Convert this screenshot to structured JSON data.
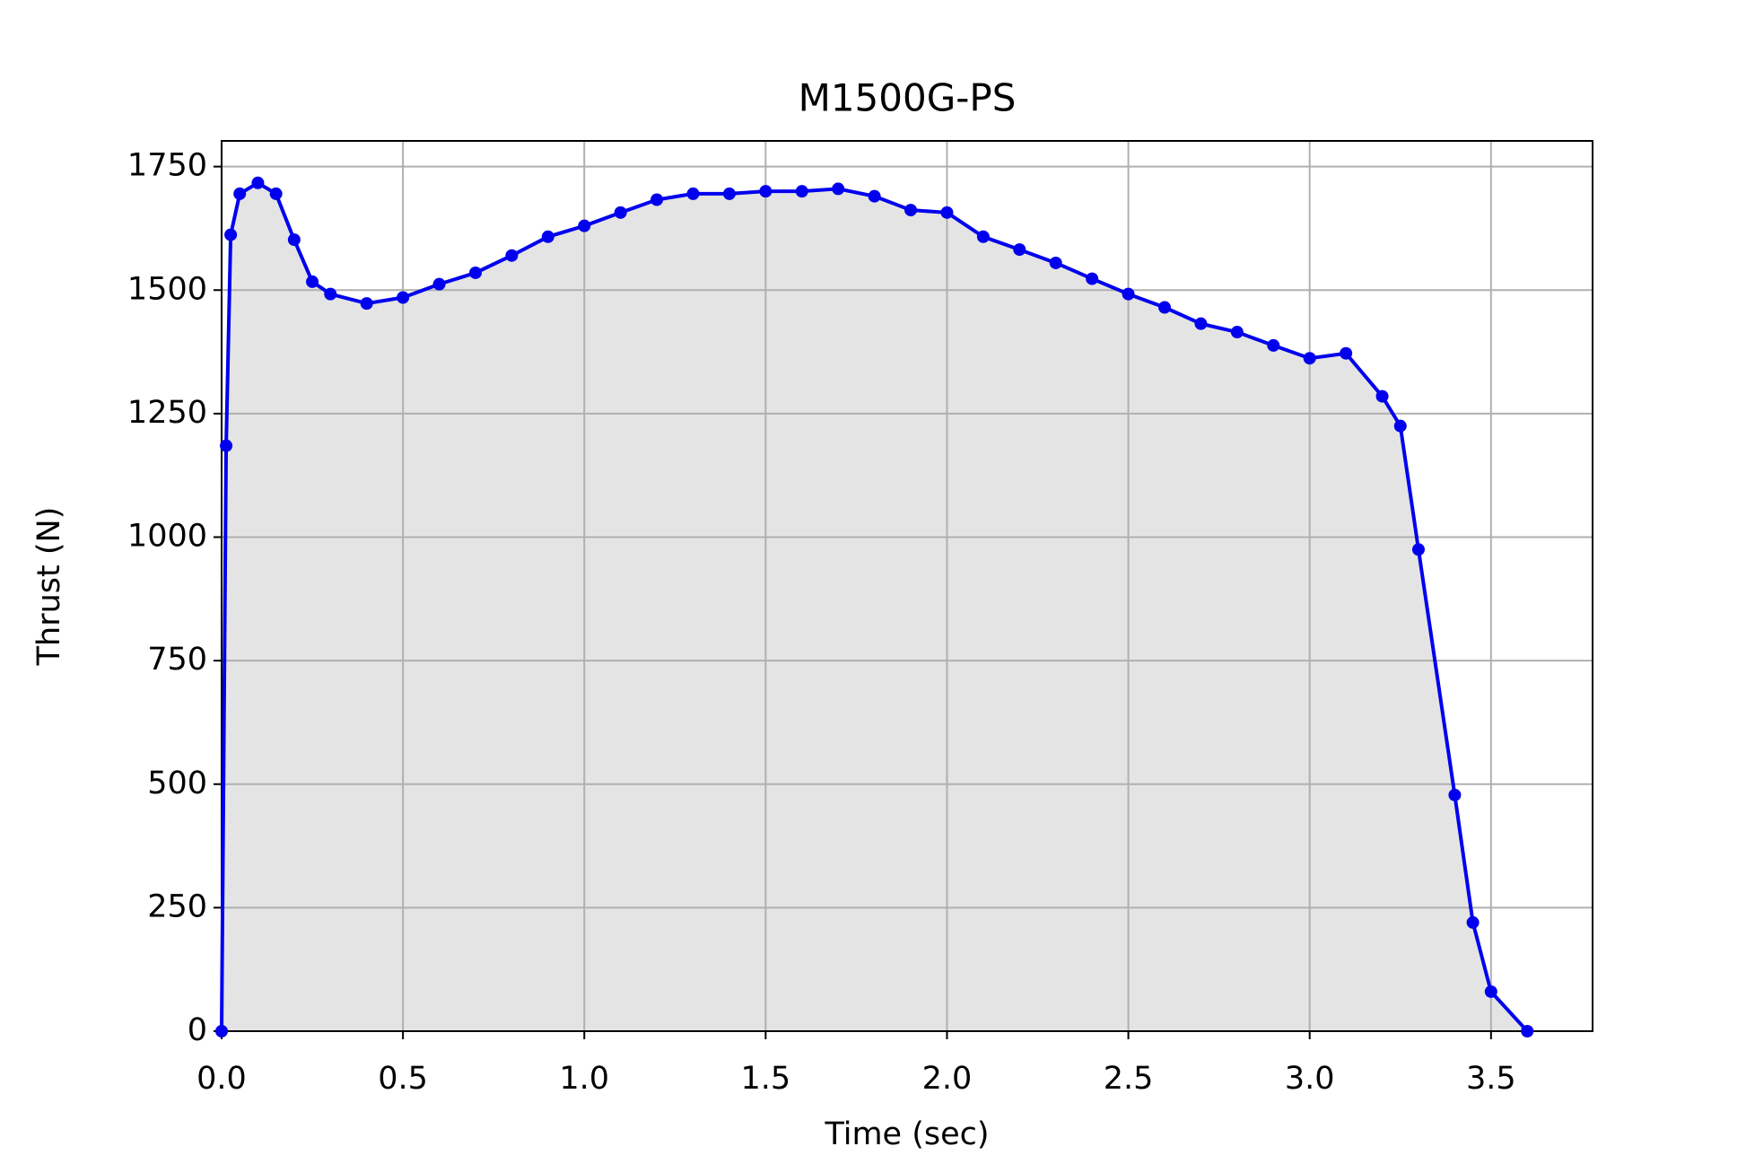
{
  "chart_data": {
    "type": "line",
    "title": "M1500G-PS",
    "x_label": "Time (sec)",
    "y_label": "Thrust (N)",
    "x": [
      0,
      0.0125,
      0.025,
      0.05,
      0.1,
      0.15,
      0.2,
      0.25,
      0.3,
      0.4,
      0.5,
      0.6,
      0.7,
      0.8,
      0.9,
      1.0,
      1.1,
      1.2,
      1.3,
      1.4,
      1.5,
      1.6,
      1.7,
      1.8,
      1.9,
      2.0,
      2.1,
      2.2,
      2.3,
      2.4,
      2.5,
      2.6,
      2.7,
      2.8,
      2.9,
      3.0,
      3.1,
      3.2,
      3.25,
      3.3,
      3.4,
      3.45,
      3.5,
      3.6
    ],
    "series": [
      {
        "color": "#0000ee",
        "fill": "#e4e4e4",
        "values": [
          0,
          1185,
          1612,
          1695,
          1717,
          1695,
          1602,
          1517,
          1492,
          1473,
          1485,
          1512,
          1535,
          1570,
          1608,
          1630,
          1657,
          1683,
          1695,
          1695,
          1700,
          1700,
          1705,
          1690,
          1662,
          1657,
          1608,
          1582,
          1555,
          1523,
          1492,
          1465,
          1432,
          1415,
          1388,
          1362,
          1372,
          1285,
          1225,
          975,
          478,
          220,
          80,
          0
        ]
      }
    ],
    "xlim": [
      0,
      3.78
    ],
    "ylim": [
      0,
      1802
    ],
    "xticks": [
      {
        "value": 0,
        "label": "0.0"
      },
      0.5,
      {
        "value": 1,
        "label": "1.0"
      },
      1.5,
      {
        "value": 2,
        "label": "2.0"
      },
      2.5,
      {
        "value": 3,
        "label": "3.0"
      },
      3.5
    ],
    "yticks": [
      0,
      250,
      500,
      750,
      1000,
      1250,
      1500,
      1750
    ],
    "grid": true
  }
}
